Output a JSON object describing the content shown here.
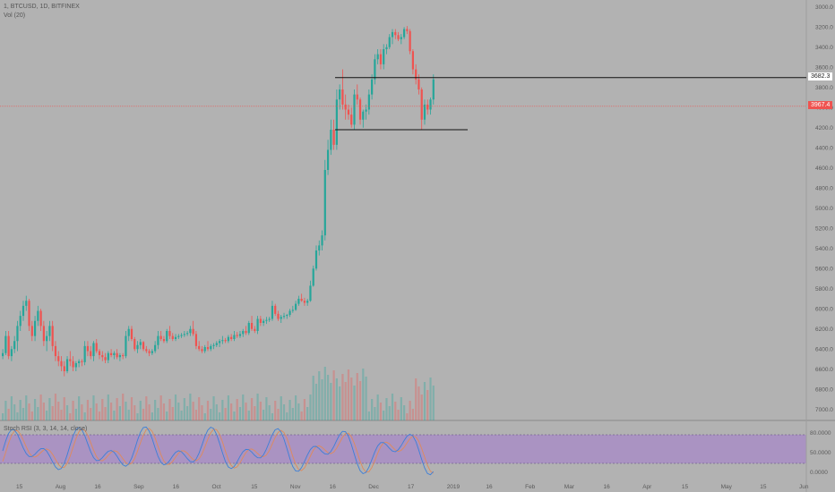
{
  "legend": {
    "symbol": "1, BTCUSD, 1D, BITFINEX",
    "volume": "Vol (20)",
    "oscillator": "Stoch RSI (3, 3, 14, 14, close)"
  },
  "price_axis": {
    "labels": [
      "3000.0",
      "3200.0",
      "3400.0",
      "3600.0",
      "3800.0",
      "4000.0",
      "4200.0",
      "4400.0",
      "4600.0",
      "4800.0",
      "5000.0",
      "5200.0",
      "5400.0",
      "5600.0",
      "5800.0",
      "6000.0",
      "6200.0",
      "6400.0",
      "6600.0",
      "6800.0",
      "7000.0"
    ],
    "top_value": 3000,
    "bottom_value": 7000,
    "inverted": true
  },
  "osc_axis": {
    "labels": [
      "80.0000",
      "50.0000",
      "0.0000"
    ]
  },
  "time_axis": {
    "labels": [
      "15",
      "Aug",
      "16",
      "Sep",
      "16",
      "Oct",
      "15",
      "Nov",
      "16",
      "Dec",
      "17",
      "2019",
      "16",
      "Feb",
      "Mar",
      "16",
      "Apr",
      "15",
      "May",
      "15",
      "Jun"
    ]
  },
  "price_tags": {
    "resistance": {
      "label": "3682.3",
      "value": 3682.3
    },
    "current": {
      "label": "3967.4",
      "value": 3967.4
    }
  },
  "support_level": 4200,
  "colors": {
    "background": "#b2b2b2",
    "up": "#26a69a",
    "down": "#ef5350",
    "osc_band": "#a98fc3",
    "stoch_k": "#3d7fd8",
    "stoch_d": "#e08a5a"
  },
  "chart_data": {
    "type": "candlestick",
    "y_scale": "inverted",
    "candles": [
      [
        6450,
        6480,
        6380,
        6420
      ],
      [
        6420,
        6440,
        6200,
        6250
      ],
      [
        6250,
        6480,
        6200,
        6450
      ],
      [
        6450,
        6500,
        6350,
        6380
      ],
      [
        6380,
        6420,
        6250,
        6300
      ],
      [
        6300,
        6400,
        6100,
        6150
      ],
      [
        6150,
        6200,
        6000,
        6050
      ],
      [
        6050,
        6100,
        5900,
        5950
      ],
      [
        5950,
        6000,
        5850,
        5900
      ],
      [
        5900,
        6200,
        5880,
        6150
      ],
      [
        6150,
        6300,
        6100,
        6250
      ],
      [
        6250,
        6300,
        6050,
        6100
      ],
      [
        6100,
        6150,
        5950,
        6000
      ],
      [
        6000,
        6200,
        5980,
        6150
      ],
      [
        6150,
        6350,
        6100,
        6300
      ],
      [
        6300,
        6400,
        6200,
        6250
      ],
      [
        6250,
        6300,
        6100,
        6150
      ],
      [
        6150,
        6400,
        6100,
        6350
      ],
      [
        6350,
        6500,
        6300,
        6450
      ],
      [
        6450,
        6550,
        6400,
        6500
      ],
      [
        6500,
        6600,
        6450,
        6550
      ],
      [
        6550,
        6650,
        6500,
        6600
      ],
      [
        6600,
        6620,
        6450,
        6480
      ],
      [
        6480,
        6550,
        6400,
        6500
      ],
      [
        6500,
        6600,
        6450,
        6560
      ],
      [
        6560,
        6600,
        6500,
        6520
      ],
      [
        6520,
        6560,
        6480,
        6500
      ],
      [
        6500,
        6550,
        6480,
        6510
      ],
      [
        6510,
        6540,
        6300,
        6350
      ],
      [
        6350,
        6450,
        6300,
        6400
      ],
      [
        6400,
        6480,
        6350,
        6450
      ],
      [
        6450,
        6500,
        6300,
        6320
      ],
      [
        6320,
        6420,
        6280,
        6400
      ],
      [
        6400,
        6480,
        6380,
        6440
      ],
      [
        6440,
        6500,
        6400,
        6460
      ],
      [
        6460,
        6520,
        6420,
        6490
      ],
      [
        6490,
        6520,
        6400,
        6420
      ],
      [
        6420,
        6460,
        6380,
        6440
      ],
      [
        6440,
        6480,
        6400,
        6420
      ],
      [
        6420,
        6480,
        6380,
        6460
      ],
      [
        6460,
        6500,
        6420,
        6440
      ],
      [
        6440,
        6480,
        6420,
        6450
      ],
      [
        6450,
        6470,
        6200,
        6250
      ],
      [
        6250,
        6300,
        6150,
        6180
      ],
      [
        6180,
        6300,
        6150,
        6280
      ],
      [
        6280,
        6400,
        6260,
        6380
      ],
      [
        6380,
        6420,
        6300,
        6340
      ],
      [
        6340,
        6380,
        6280,
        6310
      ],
      [
        6310,
        6400,
        6300,
        6380
      ],
      [
        6380,
        6420,
        6350,
        6400
      ],
      [
        6400,
        6450,
        6380,
        6420
      ],
      [
        6420,
        6440,
        6380,
        6400
      ],
      [
        6400,
        6420,
        6300,
        6340
      ],
      [
        6340,
        6380,
        6200,
        6250
      ],
      [
        6250,
        6300,
        6200,
        6280
      ],
      [
        6280,
        6320,
        6250,
        6300
      ],
      [
        6300,
        6320,
        6180,
        6200
      ],
      [
        6200,
        6280,
        6150,
        6250
      ],
      [
        6250,
        6300,
        6220,
        6280
      ],
      [
        6280,
        6300,
        6230,
        6260
      ],
      [
        6260,
        6280,
        6230,
        6250
      ],
      [
        6250,
        6270,
        6220,
        6240
      ],
      [
        6240,
        6260,
        6200,
        6230
      ],
      [
        6230,
        6250,
        6200,
        6220
      ],
      [
        6220,
        6250,
        6150,
        6180
      ],
      [
        6180,
        6250,
        6100,
        6230
      ],
      [
        6230,
        6380,
        6200,
        6350
      ],
      [
        6350,
        6400,
        6300,
        6380
      ],
      [
        6380,
        6420,
        6350,
        6400
      ],
      [
        6400,
        6420,
        6340,
        6360
      ],
      [
        6360,
        6400,
        6300,
        6380
      ],
      [
        6380,
        6400,
        6330,
        6350
      ],
      [
        6350,
        6380,
        6320,
        6340
      ],
      [
        6340,
        6360,
        6300,
        6320
      ],
      [
        6320,
        6360,
        6280,
        6300
      ],
      [
        6300,
        6330,
        6250,
        6290
      ],
      [
        6290,
        6320,
        6270,
        6300
      ],
      [
        6300,
        6320,
        6240,
        6260
      ],
      [
        6260,
        6300,
        6230,
        6280
      ],
      [
        6280,
        6300,
        6200,
        6240
      ],
      [
        6240,
        6270,
        6210,
        6250
      ],
      [
        6250,
        6270,
        6200,
        6230
      ],
      [
        6230,
        6260,
        6180,
        6200
      ],
      [
        6200,
        6240,
        6150,
        6220
      ],
      [
        6220,
        6240,
        6100,
        6120
      ],
      [
        6120,
        6200,
        6050,
        6180
      ],
      [
        6180,
        6220,
        6150,
        6200
      ],
      [
        6200,
        6230,
        6050,
        6080
      ],
      [
        6080,
        6150,
        6050,
        6120
      ],
      [
        6120,
        6150,
        6080,
        6100
      ],
      [
        6100,
        6130,
        6060,
        6090
      ],
      [
        6090,
        6110,
        6060,
        6080
      ],
      [
        6080,
        6100,
        5900,
        5950
      ],
      [
        5950,
        6050,
        5930,
        6030
      ],
      [
        6030,
        6100,
        6000,
        6080
      ],
      [
        6080,
        6120,
        6040,
        6060
      ],
      [
        6060,
        6080,
        6020,
        6050
      ],
      [
        6050,
        6080,
        6030,
        6040
      ],
      [
        6040,
        6060,
        5980,
        6000
      ],
      [
        6000,
        6020,
        5950,
        5990
      ],
      [
        5990,
        6000,
        5900,
        5930
      ],
      [
        5930,
        5950,
        5850,
        5880
      ],
      [
        5880,
        5910,
        5830,
        5900
      ],
      [
        5900,
        5950,
        5870,
        5920
      ],
      [
        5920,
        5950,
        5880,
        5900
      ],
      [
        5900,
        5910,
        5700,
        5750
      ],
      [
        5750,
        5760,
        5550,
        5580
      ],
      [
        5580,
        5600,
        5350,
        5400
      ],
      [
        5400,
        5450,
        5300,
        5350
      ],
      [
        5350,
        5400,
        5200,
        5250
      ],
      [
        5250,
        5300,
        4500,
        4600
      ],
      [
        4600,
        4650,
        4300,
        4400
      ],
      [
        4400,
        4450,
        4100,
        4200
      ],
      [
        4200,
        4400,
        4100,
        4350
      ],
      [
        4350,
        4400,
        3800,
        3900
      ],
      [
        3900,
        4000,
        3750,
        3800
      ],
      [
        3800,
        4000,
        3600,
        3950
      ],
      [
        3950,
        4100,
        3850,
        4000
      ],
      [
        4000,
        4100,
        3950,
        4050
      ],
      [
        4050,
        4180,
        3980,
        4150
      ],
      [
        4150,
        4200,
        3800,
        3850
      ],
      [
        3850,
        3950,
        3750,
        3900
      ],
      [
        3900,
        4150,
        3880,
        4100
      ],
      [
        4100,
        4180,
        4000,
        4020
      ],
      [
        4020,
        4100,
        3950,
        4000
      ],
      [
        4000,
        4050,
        3800,
        3850
      ],
      [
        3850,
        3900,
        3650,
        3700
      ],
      [
        3700,
        3750,
        3450,
        3500
      ],
      [
        3500,
        3550,
        3400,
        3450
      ],
      [
        3450,
        3600,
        3400,
        3550
      ],
      [
        3550,
        3600,
        3350,
        3400
      ],
      [
        3400,
        3450,
        3350,
        3380
      ],
      [
        3380,
        3400,
        3250,
        3280
      ],
      [
        3280,
        3350,
        3200,
        3230
      ],
      [
        3230,
        3300,
        3200,
        3260
      ],
      [
        3260,
        3320,
        3230,
        3300
      ],
      [
        3300,
        3350,
        3250,
        3280
      ],
      [
        3280,
        3300,
        3180,
        3200
      ],
      [
        3200,
        3250,
        3170,
        3220
      ],
      [
        3220,
        3450,
        3200,
        3420
      ],
      [
        3420,
        3650,
        3400,
        3600
      ],
      [
        3600,
        3750,
        3550,
        3700
      ],
      [
        3700,
        3850,
        3650,
        3800
      ],
      [
        3800,
        4200,
        3780,
        4100
      ],
      [
        4100,
        4150,
        3900,
        3950
      ],
      [
        3950,
        4050,
        3900,
        4000
      ],
      [
        4000,
        4050,
        3880,
        3900
      ],
      [
        3900,
        3950,
        3650,
        3700
      ]
    ],
    "volume_bars": 160
  }
}
